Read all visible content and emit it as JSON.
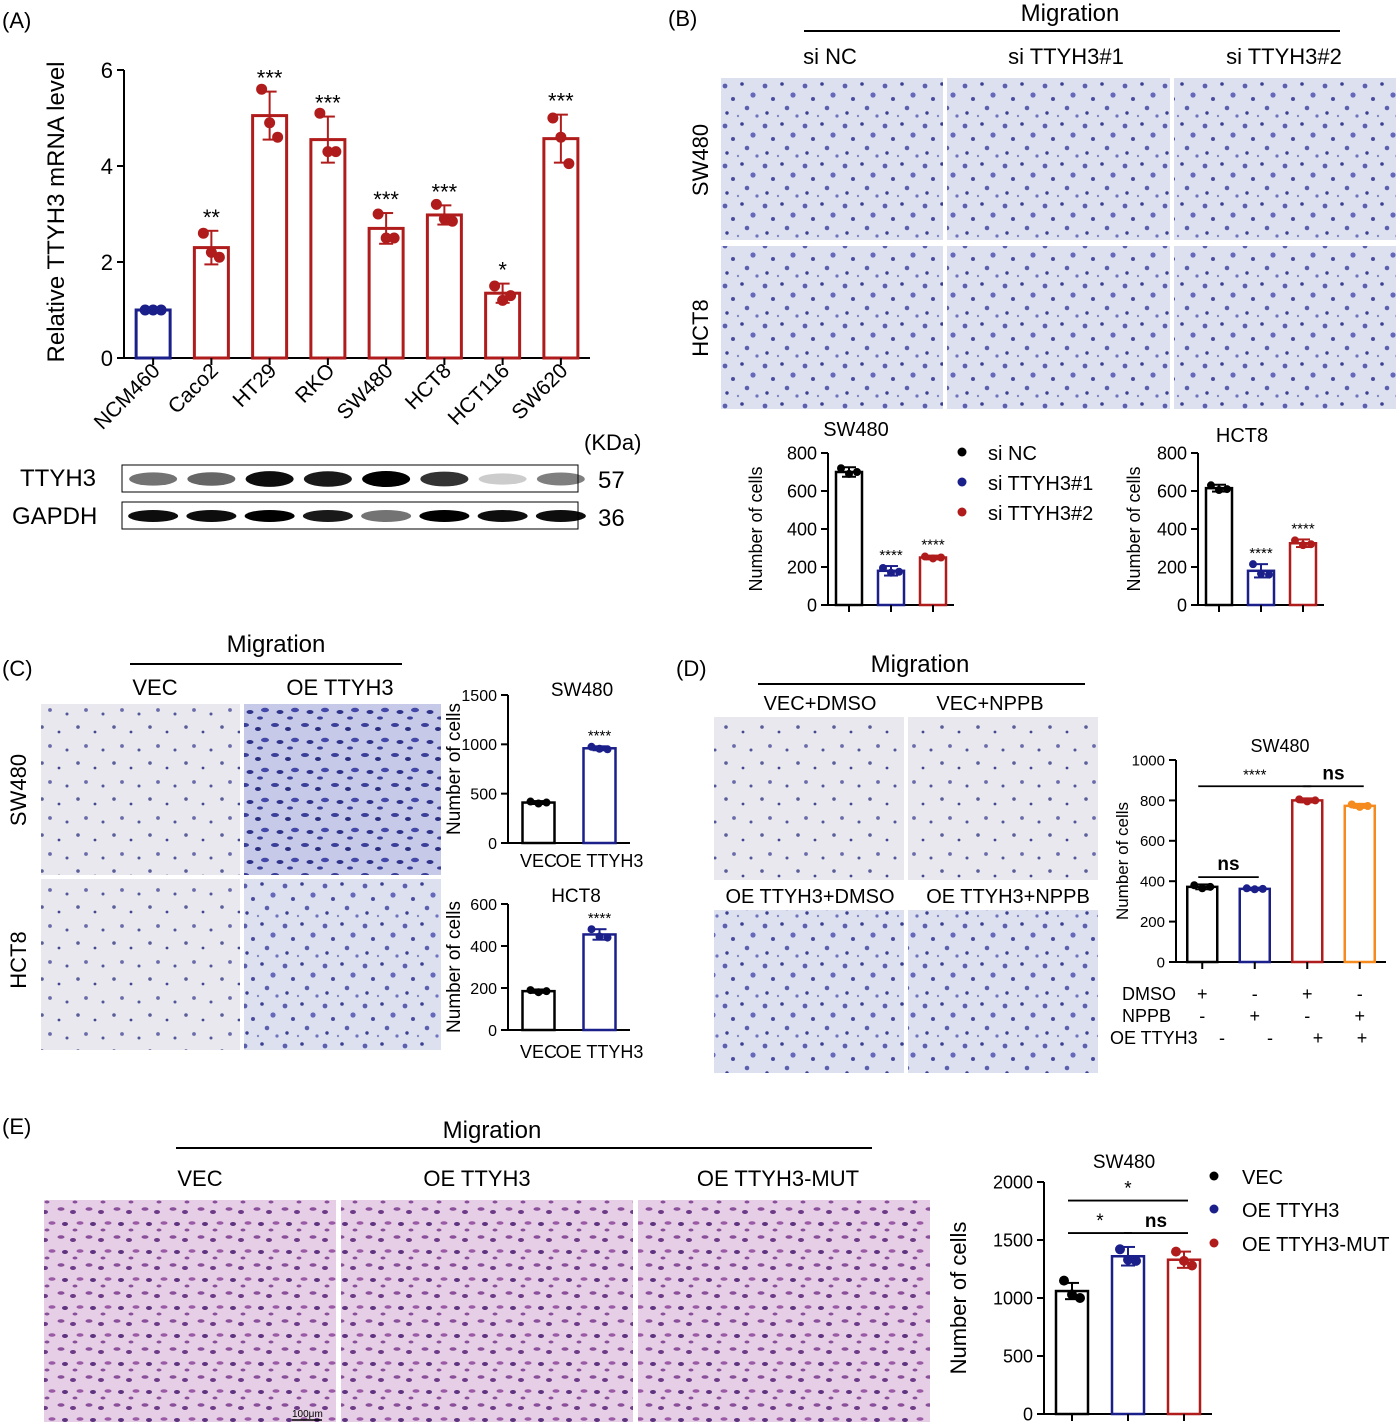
{
  "panels": {
    "A": {
      "label": "(A)",
      "ylabel": "Relative TTYH3 mRNA level",
      "yticks": [
        "0",
        "2",
        "4",
        "6"
      ],
      "categories": [
        "NCM460",
        "Caco2",
        "HT29",
        "RKO",
        "SW480",
        "HCT8",
        "HCT116",
        "SW620"
      ],
      "values": [
        1.0,
        2.3,
        5.05,
        4.55,
        2.7,
        2.98,
        1.35,
        4.57
      ],
      "sd": [
        0.04,
        0.35,
        0.5,
        0.48,
        0.32,
        0.2,
        0.2,
        0.5
      ],
      "points": [
        [
          1.0,
          1.0,
          1.0
        ],
        [
          2.6,
          2.2,
          2.1
        ],
        [
          5.6,
          4.9,
          4.6
        ],
        [
          5.1,
          4.3,
          4.3
        ],
        [
          3.0,
          2.5,
          2.5
        ],
        [
          3.2,
          2.9,
          2.85
        ],
        [
          1.5,
          1.2,
          1.3
        ],
        [
          5.0,
          4.6,
          4.05
        ]
      ],
      "sig": [
        "",
        "**",
        "***",
        "***",
        "***",
        "***",
        "*",
        "***"
      ],
      "blot": {
        "kda_label": "(KDa)",
        "rows": [
          {
            "name": "TTYH3",
            "kda": "57"
          },
          {
            "name": "GAPDH",
            "kda": "36"
          }
        ]
      }
    },
    "B": {
      "label": "(B)",
      "header": "Migration",
      "columns": [
        "si NC",
        "si TTYH3#1",
        "si TTYH3#2"
      ],
      "rows": [
        "SW480",
        "HCT8"
      ],
      "legend": [
        "si NC",
        "si TTYH3#1",
        "si TTYH3#2"
      ],
      "ylabel": "Number of cells",
      "yticks": [
        "0",
        "200",
        "400",
        "600",
        "800"
      ]
    },
    "C": {
      "label": "(C)",
      "header": "Migration",
      "columns": [
        "VEC",
        "OE TTYH3"
      ],
      "rows": [
        "SW480",
        "HCT8"
      ],
      "ylabel": "Number of cells",
      "xcats": [
        "VEC",
        "OE  TTYH3"
      ],
      "yticks_sw480": [
        "0",
        "500",
        "1000",
        "1500"
      ],
      "yticks_hct8": [
        "0",
        "200",
        "400",
        "600"
      ]
    },
    "D": {
      "label": "(D)",
      "header": "Migration",
      "images": [
        "VEC+DMSO",
        "VEC+NPPB",
        "OE TTYH3+DMSO",
        "OE TTYH3+NPPB"
      ],
      "ylabel": "Number of cells",
      "yticks": [
        "0",
        "200",
        "400",
        "600",
        "800",
        "1000"
      ],
      "table_rows": [
        {
          "name": "DMSO",
          "marks": [
            "+",
            "-",
            "+",
            "-"
          ]
        },
        {
          "name": "NPPB",
          "marks": [
            "-",
            "+",
            "-",
            "+"
          ]
        },
        {
          "name": "OE TTYH3",
          "marks": [
            "-",
            "-",
            "+",
            "+"
          ]
        }
      ]
    },
    "E": {
      "label": "(E)",
      "header": "Migration",
      "columns": [
        "VEC",
        "OE TTYH3",
        "OE TTYH3-MUT"
      ],
      "legend": [
        "VEC",
        "OE TTYH3",
        "OE TTYH3-MUT"
      ],
      "ylabel": "Number of cells",
      "yticks": [
        "0",
        "500",
        "1000",
        "1500",
        "2000"
      ]
    },
    "scale_bar": "100μm"
  },
  "colors": {
    "black": "#000000",
    "navy": "#1b1f8a",
    "red": "#b01c1c",
    "orange": "#f58a1f",
    "stain_blue": "#8a8fd0",
    "stain_purple": "#b77fb8"
  },
  "chart_data": [
    {
      "type": "bar",
      "title": "",
      "categories": [
        "NCM460",
        "Caco2",
        "HT29",
        "RKO",
        "SW480",
        "HCT8",
        "HCT116",
        "SW620"
      ],
      "values": [
        1.0,
        2.3,
        5.05,
        4.55,
        2.7,
        2.98,
        1.35,
        4.57
      ],
      "xlabel": "",
      "ylabel": "Relative TTYH3 mRNA level",
      "ylim": [
        0,
        6
      ]
    },
    {
      "type": "bar",
      "title": "SW480",
      "categories": [
        "si NC",
        "si TTYH3#1",
        "si TTYH3#2"
      ],
      "values": [
        700,
        180,
        250
      ],
      "sd": [
        25,
        25,
        10
      ],
      "points": [
        [
          720,
          690,
          700
        ],
        [
          195,
          170,
          175
        ],
        [
          255,
          245,
          250
        ]
      ],
      "sig": [
        "",
        "****",
        "****"
      ],
      "ylabel": "Number of cells",
      "ylim": [
        0,
        800
      ]
    },
    {
      "type": "bar",
      "title": "HCT8",
      "categories": [
        "si NC",
        "si TTYH3#1",
        "si TTYH3#2"
      ],
      "values": [
        615,
        180,
        325
      ],
      "sd": [
        18,
        35,
        20
      ],
      "points": [
        [
          630,
          605,
          610
        ],
        [
          215,
          165,
          160
        ],
        [
          340,
          315,
          320
        ]
      ],
      "sig": [
        "",
        "****",
        "****"
      ],
      "ylabel": "Number of cells",
      "ylim": [
        0,
        800
      ]
    },
    {
      "type": "bar",
      "title": "SW480",
      "categories": [
        "VEC",
        "OE  TTYH3"
      ],
      "values": [
        410,
        960
      ],
      "sd": [
        15,
        20
      ],
      "points": [
        [
          420,
          400,
          410
        ],
        [
          975,
          955,
          950
        ]
      ],
      "sig": [
        "",
        "****"
      ],
      "ylabel": "Number of cells",
      "ylim": [
        0,
        1500
      ]
    },
    {
      "type": "bar",
      "title": "HCT8",
      "categories": [
        "VEC",
        "OE  TTYH3"
      ],
      "values": [
        185,
        455
      ],
      "sd": [
        8,
        25
      ],
      "points": [
        [
          190,
          180,
          185
        ],
        [
          480,
          445,
          440
        ]
      ],
      "sig": [
        "",
        "****"
      ],
      "ylabel": "Number of cells",
      "ylim": [
        0,
        600
      ]
    },
    {
      "type": "bar",
      "title": "SW480",
      "categories": [
        "1",
        "2",
        "3",
        "4"
      ],
      "values": [
        372,
        362,
        800,
        773
      ],
      "sd": [
        12,
        6,
        10,
        10
      ],
      "points": [
        [
          380,
          365,
          372
        ],
        [
          365,
          360,
          362
        ],
        [
          805,
          795,
          800
        ],
        [
          780,
          768,
          772
        ]
      ],
      "comparisons": [
        [
          "1",
          "2",
          "ns"
        ],
        [
          "1",
          "3",
          "****"
        ],
        [
          "3",
          "4",
          "ns"
        ]
      ],
      "ylabel": "Number of cells",
      "ylim": [
        0,
        1000
      ]
    },
    {
      "type": "bar",
      "title": "SW480",
      "categories": [
        "VEC",
        "OE TTYH3",
        "OE TTYH3-MUT"
      ],
      "values": [
        1060,
        1360,
        1330
      ],
      "sd": [
        70,
        80,
        70
      ],
      "points": [
        [
          1150,
          1030,
          1000
        ],
        [
          1420,
          1330,
          1320
        ],
        [
          1400,
          1320,
          1280
        ]
      ],
      "comparisons": [
        [
          "VEC",
          "OE TTYH3",
          "*"
        ],
        [
          "VEC",
          "OE TTYH3-MUT",
          "*"
        ],
        [
          "OE TTYH3",
          "OE TTYH3-MUT",
          "ns"
        ]
      ],
      "ylabel": "Number of cells",
      "ylim": [
        0,
        2000
      ]
    }
  ]
}
